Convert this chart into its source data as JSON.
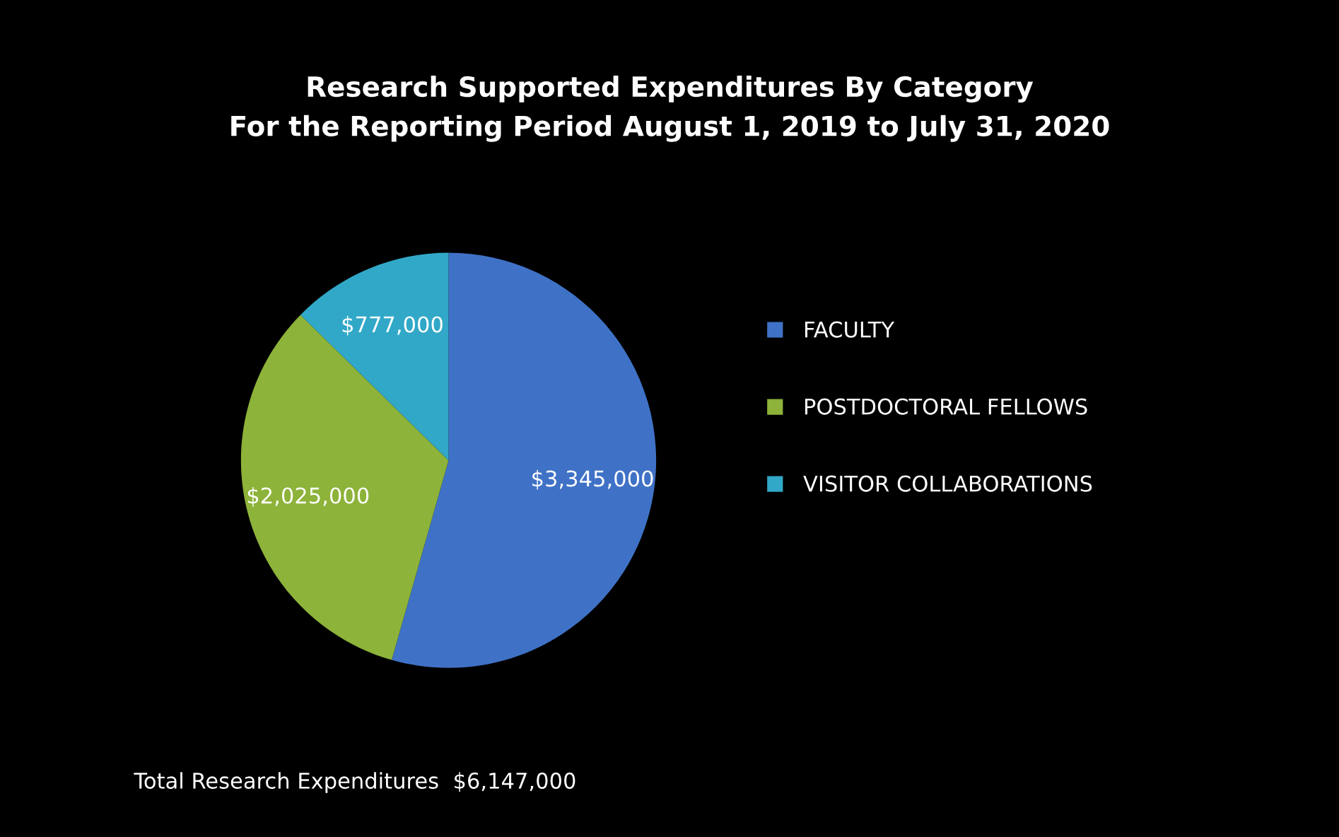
{
  "chart_data": {
    "type": "pie",
    "title": "Research Supported Expenditures By Category\nFor the Reporting Period August 1, 2019 to July 31, 2020",
    "categories": [
      "FACULTY",
      "POSTDOCTORAL FELLOWS",
      "VISITOR COLLABORATIONS"
    ],
    "values": [
      3345000,
      2025000,
      777000
    ],
    "colors": [
      "#3f72c6",
      "#8db33a",
      "#31a8c8"
    ],
    "value_labels": [
      "$3,345,000",
      "$2,025,000",
      "$777,000"
    ],
    "annotations": [
      "Total Research Expenditures  $6,147,000"
    ],
    "legend": "right"
  }
}
